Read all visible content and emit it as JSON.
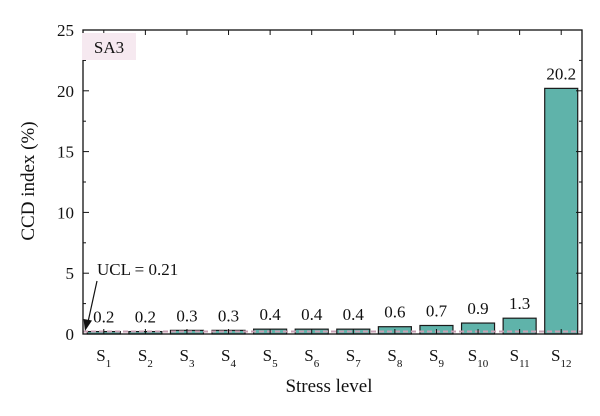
{
  "chart_data": {
    "type": "bar",
    "panel_label": "SA3",
    "categories": [
      {
        "base": "S",
        "sub": "1"
      },
      {
        "base": "S",
        "sub": "2"
      },
      {
        "base": "S",
        "sub": "3"
      },
      {
        "base": "S",
        "sub": "4"
      },
      {
        "base": "S",
        "sub": "5"
      },
      {
        "base": "S",
        "sub": "6"
      },
      {
        "base": "S",
        "sub": "7"
      },
      {
        "base": "S",
        "sub": "8"
      },
      {
        "base": "S",
        "sub": "9"
      },
      {
        "base": "S",
        "sub": "10"
      },
      {
        "base": "S",
        "sub": "11"
      },
      {
        "base": "S",
        "sub": "12"
      }
    ],
    "values": [
      0.2,
      0.2,
      0.3,
      0.3,
      0.4,
      0.4,
      0.4,
      0.6,
      0.7,
      0.9,
      1.3,
      20.2
    ],
    "value_labels": [
      "0.2",
      "0.2",
      "0.3",
      "0.3",
      "0.4",
      "0.4",
      "0.4",
      "0.6",
      "0.7",
      "0.9",
      "1.3",
      "20.2"
    ],
    "xlabel": "Stress level",
    "ylabel": "CCD index (%)",
    "ylim": [
      0,
      25
    ],
    "yticks": [
      0,
      5,
      10,
      15,
      20,
      25
    ],
    "ucl": {
      "value": 0.21,
      "label": "UCL = 0.21",
      "color": "#c9a0b4"
    },
    "bar_color": "#5fb3aa",
    "bar_edge_color": "#1a1a1a",
    "panel_label_bg": "#f6e9f0",
    "grid": false,
    "legend": "none"
  }
}
